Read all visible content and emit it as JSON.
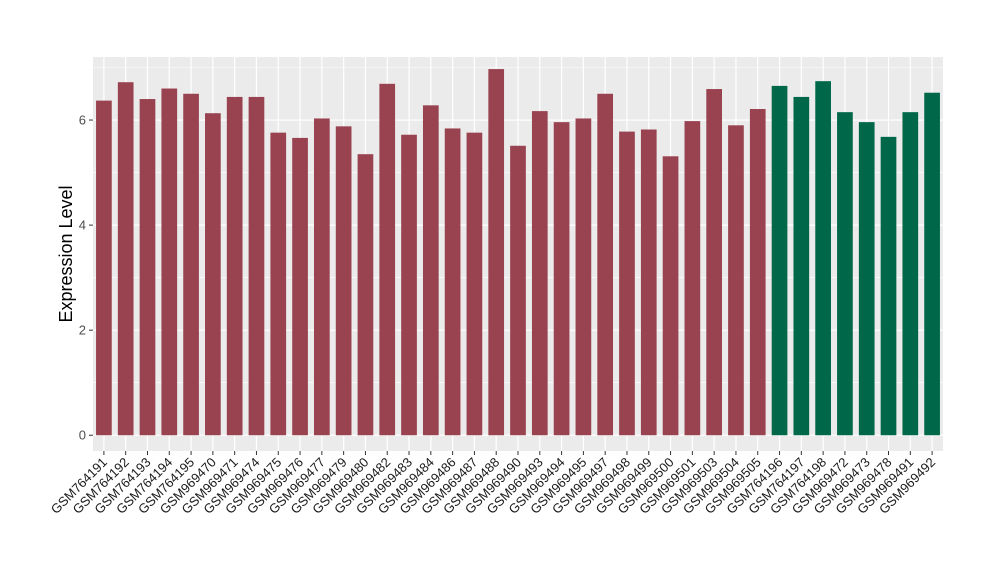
{
  "chart_data": {
    "type": "bar",
    "title": "",
    "xlabel": "",
    "ylabel": "Expression Level",
    "ylim": [
      -0.3,
      7.2
    ],
    "yticks": [
      0,
      2,
      4,
      6
    ],
    "grid": true,
    "background": "#EBEBEB",
    "categories": [
      "GSM764191",
      "GSM764192",
      "GSM764193",
      "GSM764194",
      "GSM764195",
      "GSM969470",
      "GSM969471",
      "GSM969474",
      "GSM969475",
      "GSM969476",
      "GSM969477",
      "GSM969479",
      "GSM969480",
      "GSM969482",
      "GSM969483",
      "GSM969484",
      "GSM969486",
      "GSM969487",
      "GSM969488",
      "GSM969490",
      "GSM969493",
      "GSM969494",
      "GSM969495",
      "GSM969497",
      "GSM969498",
      "GSM969499",
      "GSM969500",
      "GSM969501",
      "GSM969503",
      "GSM969504",
      "GSM969505",
      "GSM764196",
      "GSM764197",
      "GSM764198",
      "GSM969472",
      "GSM969473",
      "GSM969478",
      "GSM969491",
      "GSM969492"
    ],
    "values": [
      6.37,
      6.72,
      6.4,
      6.6,
      6.5,
      6.13,
      6.44,
      6.44,
      5.76,
      5.66,
      6.03,
      5.88,
      5.35,
      6.69,
      5.72,
      6.28,
      5.84,
      5.76,
      6.97,
      5.51,
      6.17,
      5.96,
      6.03,
      6.5,
      5.78,
      5.82,
      5.31,
      5.98,
      6.59,
      5.9,
      6.21,
      6.65,
      6.44,
      6.74,
      6.15,
      5.96,
      5.68,
      6.15,
      6.52
    ],
    "bar_colors": [
      "#9A4350",
      "#9A4350",
      "#9A4350",
      "#9A4350",
      "#9A4350",
      "#9A4350",
      "#9A4350",
      "#9A4350",
      "#9A4350",
      "#9A4350",
      "#9A4350",
      "#9A4350",
      "#9A4350",
      "#9A4350",
      "#9A4350",
      "#9A4350",
      "#9A4350",
      "#9A4350",
      "#9A4350",
      "#9A4350",
      "#9A4350",
      "#9A4350",
      "#9A4350",
      "#9A4350",
      "#9A4350",
      "#9A4350",
      "#9A4350",
      "#9A4350",
      "#9A4350",
      "#9A4350",
      "#9A4350",
      "#006848",
      "#006848",
      "#006848",
      "#006848",
      "#006848",
      "#006848",
      "#006848",
      "#006848"
    ]
  }
}
